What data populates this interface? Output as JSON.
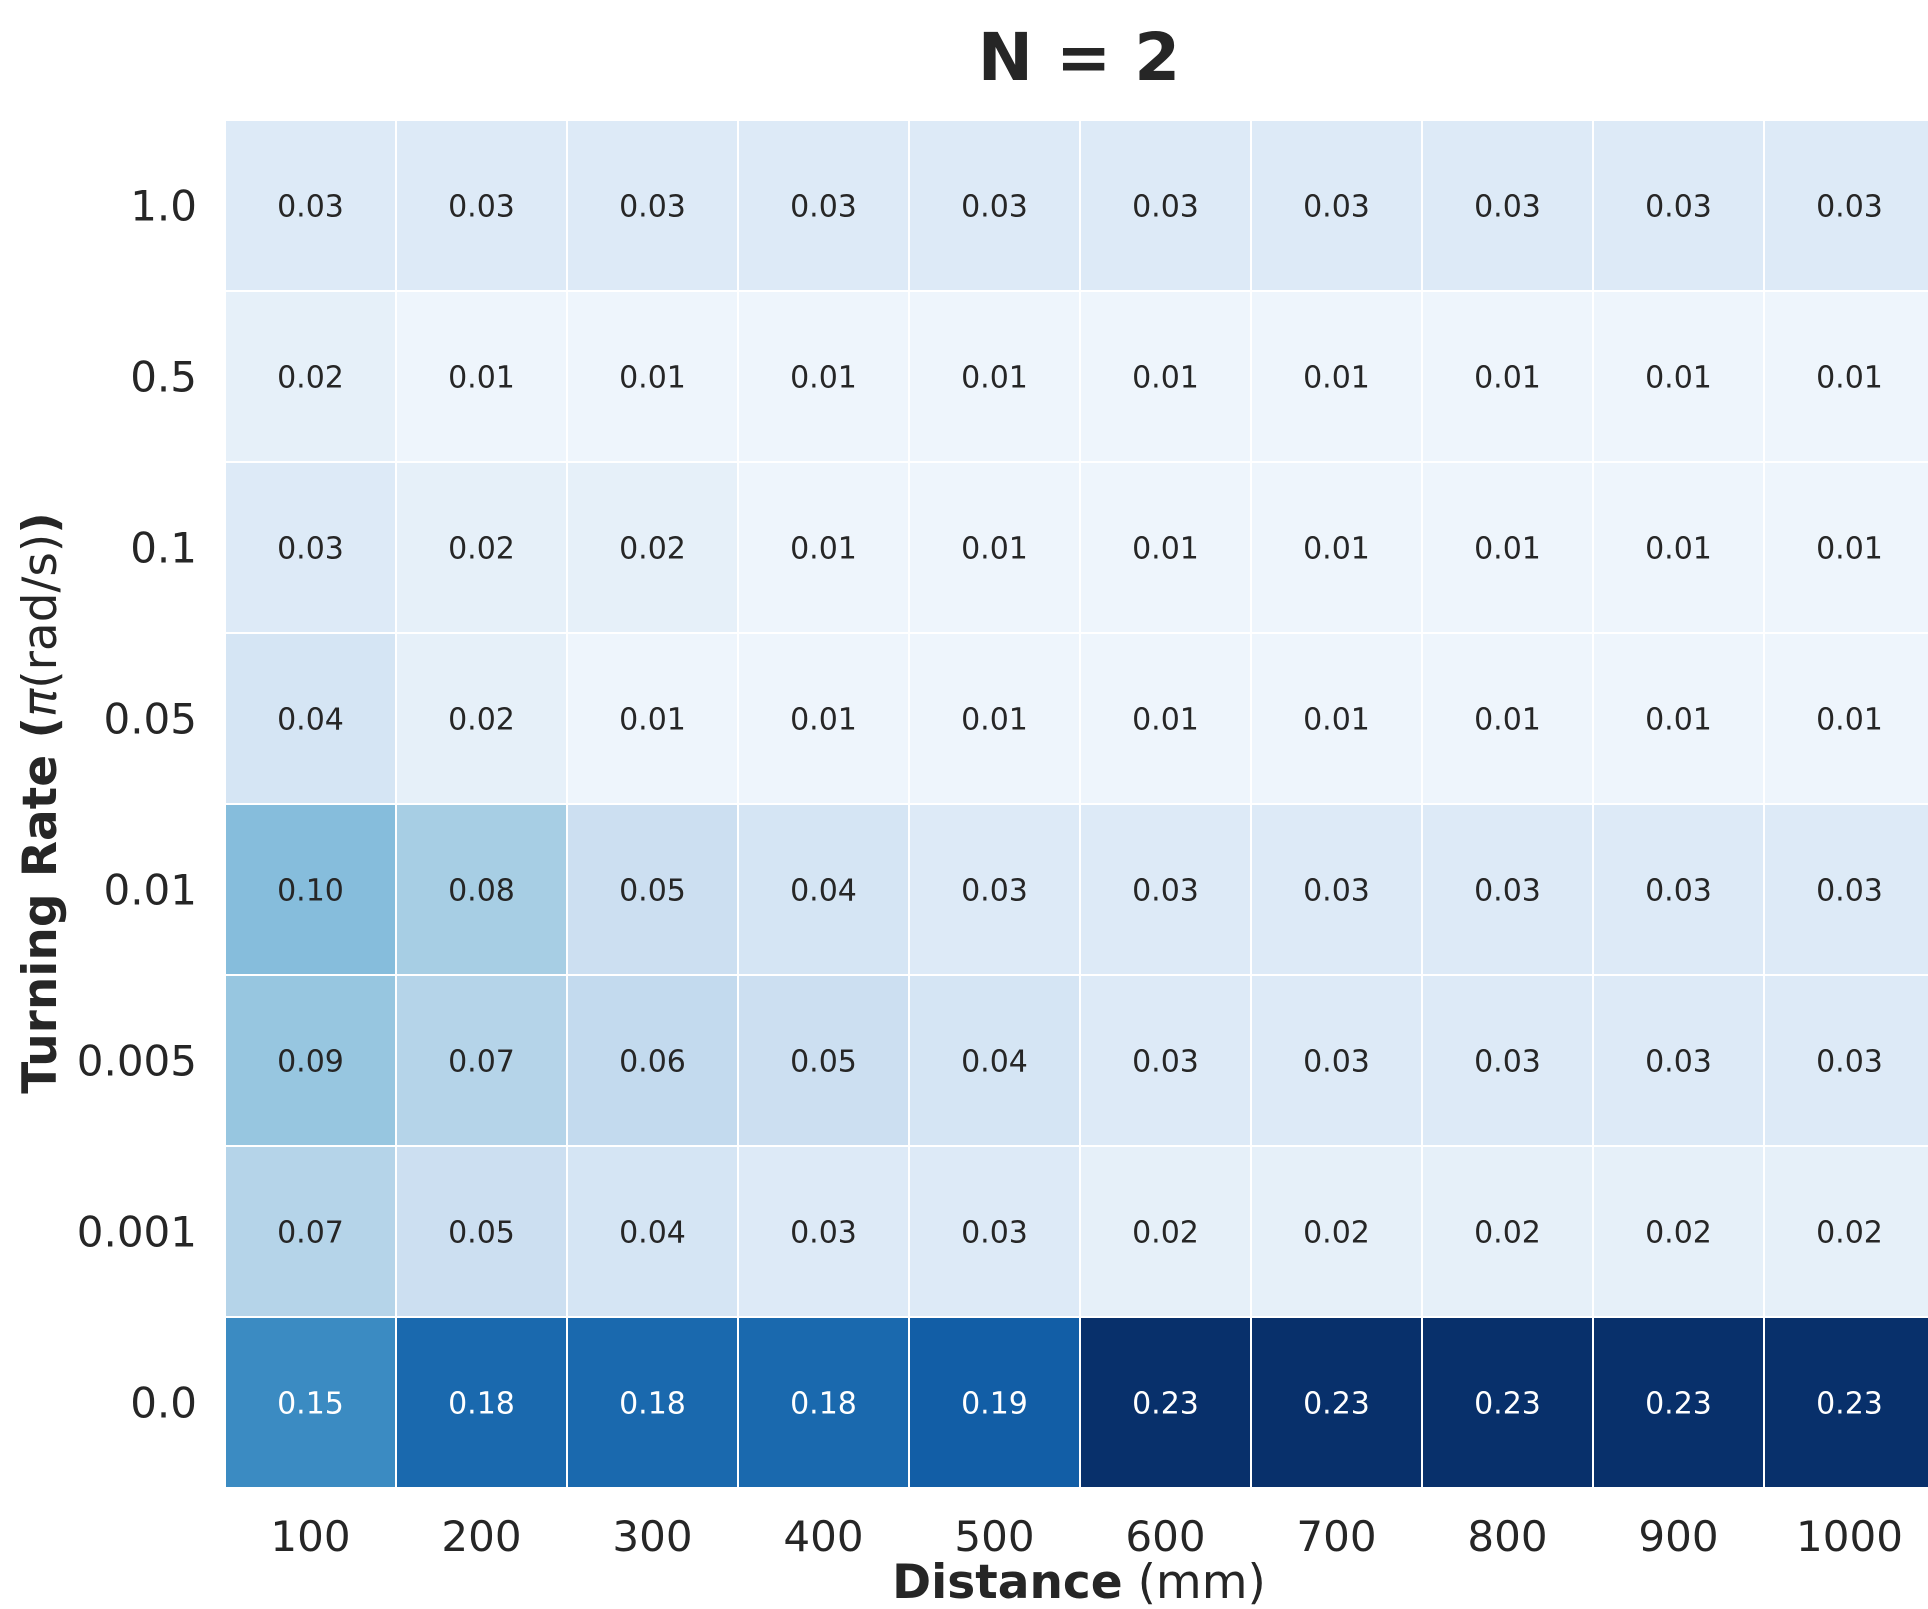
{
  "chart_data": {
    "type": "heatmap",
    "title": "N = 2",
    "xlabel_bold": "Distance",
    "xlabel_rest": " (mm)",
    "ylabel_bold_prefix": "Turning Rate (",
    "ylabel_symbol": "π",
    "ylabel_unit": "(rad/s)",
    "ylabel_bold_suffix": ")",
    "x_categories": [
      "100",
      "200",
      "300",
      "400",
      "500",
      "600",
      "700",
      "800",
      "900",
      "1000"
    ],
    "y_categories": [
      "1.0",
      "0.5",
      "0.1",
      "0.05",
      "0.01",
      "0.005",
      "0.001",
      "0.0"
    ],
    "values": [
      [
        0.03,
        0.03,
        0.03,
        0.03,
        0.03,
        0.03,
        0.03,
        0.03,
        0.03,
        0.03
      ],
      [
        0.02,
        0.01,
        0.01,
        0.01,
        0.01,
        0.01,
        0.01,
        0.01,
        0.01,
        0.01
      ],
      [
        0.03,
        0.02,
        0.02,
        0.01,
        0.01,
        0.01,
        0.01,
        0.01,
        0.01,
        0.01
      ],
      [
        0.04,
        0.02,
        0.01,
        0.01,
        0.01,
        0.01,
        0.01,
        0.01,
        0.01,
        0.01
      ],
      [
        0.1,
        0.08,
        0.05,
        0.04,
        0.03,
        0.03,
        0.03,
        0.03,
        0.03,
        0.03
      ],
      [
        0.09,
        0.07,
        0.06,
        0.05,
        0.04,
        0.03,
        0.03,
        0.03,
        0.03,
        0.03
      ],
      [
        0.07,
        0.05,
        0.04,
        0.03,
        0.03,
        0.02,
        0.02,
        0.02,
        0.02,
        0.02
      ],
      [
        0.15,
        0.18,
        0.18,
        0.18,
        0.19,
        0.23,
        0.23,
        0.23,
        0.23,
        0.23
      ]
    ],
    "colormap": "Blues",
    "color_range": [
      0.0,
      0.23
    ],
    "grid": false,
    "legend": "none"
  }
}
